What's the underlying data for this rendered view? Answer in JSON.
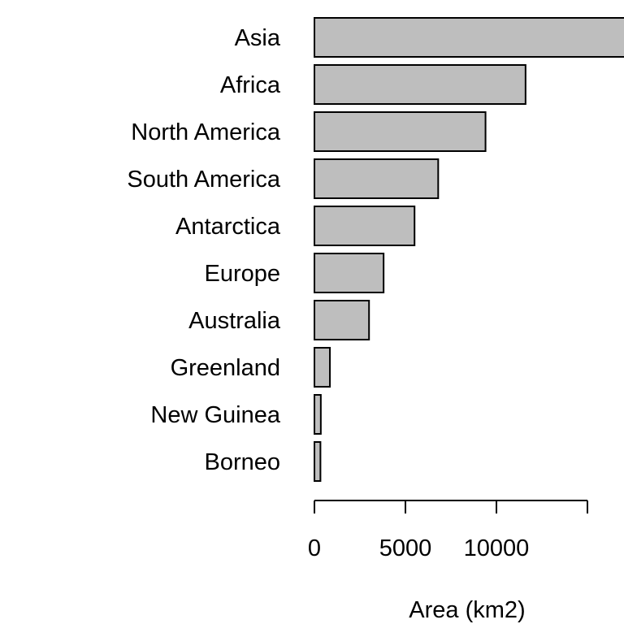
{
  "chart_data": {
    "type": "bar",
    "orientation": "horizontal",
    "categories": [
      "Asia",
      "Africa",
      "North America",
      "South America",
      "Antarctica",
      "Europe",
      "Australia",
      "Greenland",
      "New Guinea",
      "Borneo"
    ],
    "values": [
      17200,
      11600,
      9400,
      6800,
      5500,
      3800,
      3000,
      850,
      350,
      330
    ],
    "xlabel": "Area (km2)",
    "ylabel": "",
    "title": "",
    "x_ticks": [
      0,
      5000,
      10000
    ],
    "x_tick_labels": [
      "0",
      "5000",
      "10000"
    ],
    "xlim": [
      0,
      17000
    ],
    "grid": false,
    "colors": {
      "bar_fill": "#bebebe",
      "bar_stroke": "#000000"
    }
  }
}
